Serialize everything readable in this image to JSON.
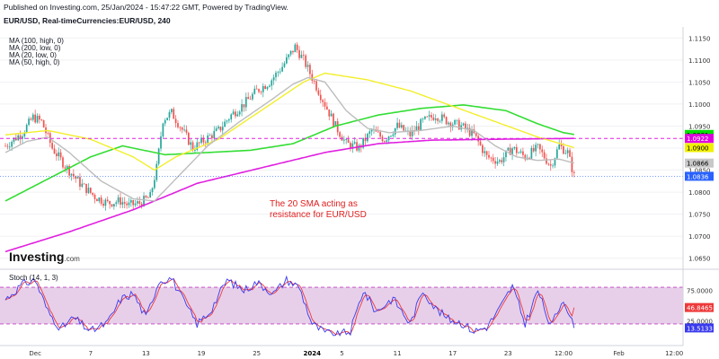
{
  "header": {
    "published": "Published on Investing.com, 25/Jan/2024 - 15:47:22 GMT, Powered by TradingView.",
    "symbol": "EUR/USD, Real-timeCurrencies:EUR/USD, 240"
  },
  "legend": {
    "items": [
      {
        "label": "MA (100, high, 0)",
        "color": "#00e000"
      },
      {
        "label": "MA (200, low, 0)",
        "color": "#e000e0"
      },
      {
        "label": "MA (20, low, 0)",
        "color": "#b8b8b8"
      },
      {
        "label": "MA (50, high, 0)",
        "color": "#f0f000"
      }
    ]
  },
  "logo": {
    "text": "Investing",
    "suffix": ".com"
  },
  "annotation": {
    "lines": [
      "The 20 SMA acting as",
      "resistance for EUR/USD"
    ]
  },
  "colors": {
    "up": "#26a69a",
    "down": "#ef5350",
    "ma100": "#33dd33",
    "ma200": "#e020e0",
    "ma20": "#bdbdbd",
    "ma50": "#f2ee2a",
    "stoch_k": "#3a3aee",
    "stoch_d": "#ee3a3a",
    "stoch_band": "#e7cfe9"
  },
  "chart_data": [
    {
      "type": "candlestick",
      "yaxis": {
        "range": [
          1.0625,
          1.1175
        ],
        "ticks": [
          "1.1150",
          "1.1100",
          "1.1050",
          "1.1000",
          "1.0950",
          "1.0900",
          "1.0850",
          "1.0800",
          "1.0750",
          "1.0700",
          "1.0650"
        ]
      },
      "xaxis": {
        "ticks": [
          "Dec",
          "7",
          "13",
          "19",
          "25",
          "2024",
          "5",
          "11",
          "17",
          "23",
          "12:00",
          "Feb",
          "12:00"
        ]
      },
      "price_labels": [
        {
          "text": "1.0931",
          "value": 1.0931,
          "bg": "#00e000",
          "fg": "#000000"
        },
        {
          "text": "1.0922",
          "value": 1.0922,
          "bg": "#e000e0",
          "fg": "#ffffff"
        },
        {
          "text": "1.0900",
          "value": 1.0901,
          "bg": "#f0f000",
          "fg": "#000000"
        },
        {
          "text": "1.0866",
          "value": 1.0866,
          "bg": "#c8c8c8",
          "fg": "#000000"
        },
        {
          "text": "1.0836",
          "value": 1.0836,
          "bg": "#2962ff",
          "fg": "#ffffff"
        }
      ],
      "anchors": {
        "close": [
          [
            0,
            1.0905
          ],
          [
            8,
            1.0935
          ],
          [
            13,
            1.097
          ],
          [
            17,
            1.096
          ],
          [
            22,
            1.09
          ],
          [
            28,
            1.086
          ],
          [
            35,
            1.082
          ],
          [
            42,
            1.079
          ],
          [
            48,
            1.0775
          ],
          [
            54,
            1.078
          ],
          [
            58,
            1.077
          ],
          [
            63,
            1.0775
          ],
          [
            68,
            1.079
          ],
          [
            71,
            1.0855
          ],
          [
            74,
            1.0965
          ],
          [
            78,
            1.098
          ],
          [
            82,
            1.095
          ],
          [
            88,
            1.09
          ],
          [
            94,
            1.092
          ],
          [
            100,
            1.094
          ],
          [
            106,
            1.0975
          ],
          [
            112,
            1.1
          ],
          [
            118,
            1.103
          ],
          [
            124,
            1.105
          ],
          [
            130,
            1.1085
          ],
          [
            136,
            1.113
          ],
          [
            140,
            1.11
          ],
          [
            144,
            1.106
          ],
          [
            150,
            1.1
          ],
          [
            155,
            1.095
          ],
          [
            160,
            1.091
          ],
          [
            166,
            1.09
          ],
          [
            172,
            1.094
          ],
          [
            178,
            1.092
          ],
          [
            184,
            1.095
          ],
          [
            190,
            1.093
          ],
          [
            196,
            1.096
          ],
          [
            202,
            1.0975
          ],
          [
            208,
            1.096
          ],
          [
            214,
            1.095
          ],
          [
            220,
            1.093
          ],
          [
            226,
            1.088
          ],
          [
            232,
            1.087
          ],
          [
            238,
            1.09
          ],
          [
            244,
            1.088
          ],
          [
            250,
            1.09
          ],
          [
            256,
            1.086
          ],
          [
            260,
            1.0905
          ],
          [
            264,
            1.089
          ],
          [
            267,
            1.0836
          ]
        ],
        "ma100": [
          [
            0,
            1.078
          ],
          [
            20,
            1.083
          ],
          [
            40,
            1.088
          ],
          [
            55,
            1.0905
          ],
          [
            75,
            1.0885
          ],
          [
            95,
            1.089
          ],
          [
            115,
            1.0895
          ],
          [
            135,
            1.091
          ],
          [
            155,
            1.095
          ],
          [
            175,
            1.0975
          ],
          [
            195,
            1.099
          ],
          [
            215,
            1.0998
          ],
          [
            235,
            1.0985
          ],
          [
            250,
            1.0955
          ],
          [
            262,
            1.0935
          ],
          [
            267,
            1.0931
          ]
        ],
        "ma200": [
          [
            0,
            1.0665
          ],
          [
            30,
            1.071
          ],
          [
            60,
            1.076
          ],
          [
            90,
            1.082
          ],
          [
            120,
            1.0855
          ],
          [
            150,
            1.089
          ],
          [
            175,
            1.091
          ],
          [
            200,
            1.0918
          ],
          [
            230,
            1.092
          ],
          [
            267,
            1.0922
          ]
        ],
        "ma20": [
          [
            0,
            1.089
          ],
          [
            10,
            1.0915
          ],
          [
            20,
            1.0925
          ],
          [
            30,
            1.089
          ],
          [
            45,
            1.0825
          ],
          [
            60,
            1.0785
          ],
          [
            70,
            1.078
          ],
          [
            80,
            1.083
          ],
          [
            95,
            1.0905
          ],
          [
            110,
            1.096
          ],
          [
            125,
            1.101
          ],
          [
            135,
            1.1045
          ],
          [
            142,
            1.106
          ],
          [
            150,
            1.105
          ],
          [
            160,
            1.0985
          ],
          [
            170,
            1.0945
          ],
          [
            180,
            1.0935
          ],
          [
            195,
            1.094
          ],
          [
            210,
            1.095
          ],
          [
            220,
            1.094
          ],
          [
            230,
            1.0905
          ],
          [
            240,
            1.088
          ],
          [
            250,
            1.0872
          ],
          [
            260,
            1.0875
          ],
          [
            267,
            1.0866
          ]
        ],
        "ma50": [
          [
            0,
            1.093
          ],
          [
            20,
            1.094
          ],
          [
            40,
            1.092
          ],
          [
            60,
            1.088
          ],
          [
            70,
            1.085
          ],
          [
            80,
            1.088
          ],
          [
            100,
            1.092
          ],
          [
            120,
            1.0985
          ],
          [
            140,
            1.105
          ],
          [
            150,
            1.107
          ],
          [
            170,
            1.1055
          ],
          [
            190,
            1.103
          ],
          [
            210,
            1.0995
          ],
          [
            230,
            1.096
          ],
          [
            250,
            1.0925
          ],
          [
            267,
            1.0901
          ]
        ]
      },
      "n_candles": 268
    },
    {
      "type": "line",
      "title": "Stoch (14, 1, 3)",
      "yaxis": {
        "range": [
          -5,
          105
        ],
        "ticks": [
          "75.0000",
          "50.0000",
          "25.0000"
        ]
      },
      "levels": {
        "upper": 80,
        "lower": 20
      },
      "value_labels": [
        {
          "text": "46.8465",
          "value": 46.8465,
          "bg": "#ee3a3a",
          "fg": "#ffffff"
        },
        {
          "text": "13.5133",
          "value": 13.5133,
          "bg": "#3a3aee",
          "fg": "#ffffff"
        }
      ],
      "k_anchors": [
        [
          0,
          60
        ],
        [
          8,
          85
        ],
        [
          14,
          92
        ],
        [
          20,
          40
        ],
        [
          26,
          12
        ],
        [
          32,
          30
        ],
        [
          40,
          8
        ],
        [
          48,
          22
        ],
        [
          54,
          60
        ],
        [
          60,
          70
        ],
        [
          66,
          30
        ],
        [
          72,
          90
        ],
        [
          78,
          95
        ],
        [
          84,
          55
        ],
        [
          90,
          20
        ],
        [
          96,
          40
        ],
        [
          104,
          92
        ],
        [
          112,
          75
        ],
        [
          118,
          88
        ],
        [
          126,
          70
        ],
        [
          132,
          92
        ],
        [
          138,
          80
        ],
        [
          144,
          20
        ],
        [
          150,
          6
        ],
        [
          156,
          2
        ],
        [
          162,
          8
        ],
        [
          168,
          75
        ],
        [
          174,
          40
        ],
        [
          182,
          62
        ],
        [
          190,
          20
        ],
        [
          196,
          75
        ],
        [
          202,
          45
        ],
        [
          208,
          28
        ],
        [
          214,
          22
        ],
        [
          220,
          8
        ],
        [
          226,
          15
        ],
        [
          232,
          45
        ],
        [
          238,
          82
        ],
        [
          244,
          20
        ],
        [
          250,
          75
        ],
        [
          256,
          15
        ],
        [
          262,
          62
        ],
        [
          267,
          13.5
        ]
      ]
    }
  ]
}
